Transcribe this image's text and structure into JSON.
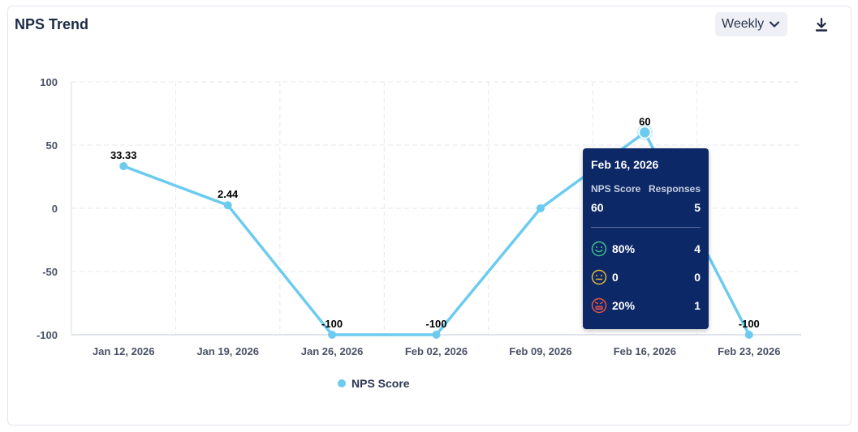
{
  "header": {
    "title": "NPS Trend",
    "period_label": "Weekly"
  },
  "colors": {
    "series": "#6ccbef",
    "tooltip_bg": "#0d2866",
    "promoter": "#3cc08a",
    "passive": "#e2b93b",
    "detractor": "#e5534b"
  },
  "icons": {
    "period": "chevron-down-icon",
    "download": "download-icon"
  },
  "chart_data": {
    "type": "line",
    "title": "NPS Trend",
    "categories": [
      "Jan 12, 2026",
      "Jan 19, 2026",
      "Jan 26, 2026",
      "Feb 02, 2026",
      "Feb 09, 2026",
      "Feb 16, 2026",
      "Feb 23, 2026"
    ],
    "series": [
      {
        "name": "NPS Score",
        "values": [
          33.33,
          2.44,
          -100,
          -100,
          0,
          60,
          -100
        ],
        "data_labels": [
          "33.33",
          "2.44",
          "-100",
          "-100",
          "",
          "60",
          "-100"
        ]
      }
    ],
    "ylim": [
      -100,
      100
    ],
    "yticks": [
      100,
      50,
      0,
      -50,
      -100
    ],
    "grid": true,
    "legend": "bottom-center"
  },
  "tooltip": {
    "date": "Feb 16, 2026",
    "nps_label": "NPS Score",
    "responses_label": "Responses",
    "nps_value": "60",
    "responses_value": "5",
    "rows": [
      {
        "icon": "smile-face-icon",
        "percent": "80%",
        "count": "4"
      },
      {
        "icon": "neutral-face-icon",
        "percent": "0",
        "count": "0"
      },
      {
        "icon": "angry-face-icon",
        "percent": "20%",
        "count": "1"
      }
    ]
  }
}
